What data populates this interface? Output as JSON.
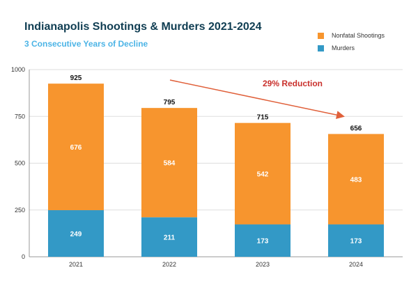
{
  "chart_data": {
    "type": "bar",
    "stacked": true,
    "title": "Indianapolis Shootings & Murders 2021-2024",
    "subtitle": "3 Consecutive Years of Decline",
    "categories": [
      "2021",
      "2022",
      "2023",
      "2024"
    ],
    "series": [
      {
        "name": "Murders",
        "values": [
          249,
          211,
          173,
          173
        ],
        "color": "#3399c6"
      },
      {
        "name": "Nonfatal Shootings",
        "values": [
          676,
          584,
          542,
          483
        ],
        "color": "#f7952e"
      }
    ],
    "totals": [
      "925",
      "795",
      "715",
      "656"
    ],
    "legend_entries": [
      "Nonfatal Shootings",
      "Murders"
    ],
    "legend_position": "top-right",
    "ylim": [
      0,
      1000
    ],
    "yticks": [
      "0",
      "250",
      "500",
      "750",
      "1000"
    ],
    "ytick_values": [
      0,
      250,
      500,
      750,
      1000
    ],
    "grid": true,
    "annotation": {
      "text": "29% Reduction",
      "color": "#c9302c",
      "arrow_color": "#e0603a",
      "arrow_from": "2021",
      "arrow_to": "2024"
    }
  }
}
